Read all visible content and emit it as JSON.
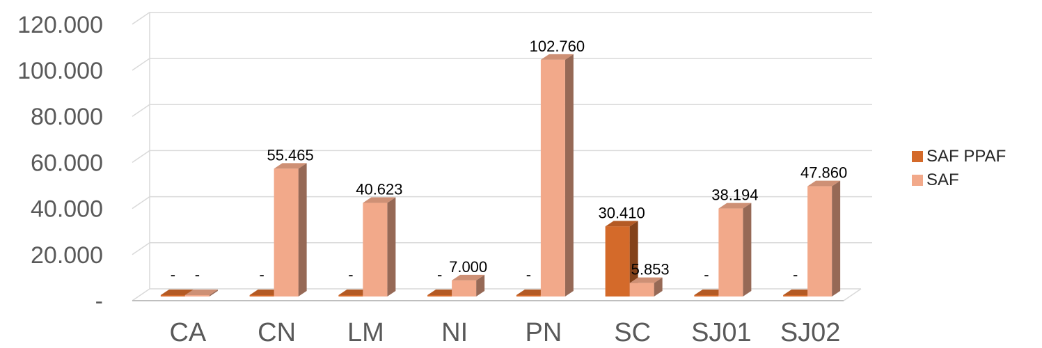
{
  "chart_data": {
    "type": "bar",
    "style": "3d-clustered-column",
    "categories": [
      "CA",
      "CN",
      "LM",
      "NI",
      "PN",
      "SC",
      "SJ01",
      "SJ02"
    ],
    "series": [
      {
        "name": "SAF PPAF",
        "color": "#d46a2a",
        "values": [
          0,
          0,
          0,
          0,
          0,
          30410,
          0,
          0
        ],
        "labels": [
          "-",
          "-",
          "-",
          "-",
          "-",
          "30.410",
          "-",
          "-"
        ]
      },
      {
        "name": "SAF",
        "color": "#f2a98a",
        "values": [
          0,
          55465,
          40623,
          7000,
          102760,
          5853,
          38194,
          47860
        ],
        "labels": [
          "-",
          "55.465",
          "40.623",
          "7.000",
          "102.760",
          "5.853",
          "38.194",
          "47.860"
        ]
      }
    ],
    "y_ticks": [
      {
        "value": 0,
        "label": "-"
      },
      {
        "value": 20000,
        "label": "20.000"
      },
      {
        "value": 40000,
        "label": "40.000"
      },
      {
        "value": 60000,
        "label": "60.000"
      },
      {
        "value": 80000,
        "label": "80.000"
      },
      {
        "value": 100000,
        "label": "100.000"
      },
      {
        "value": 120000,
        "label": "120.000"
      }
    ],
    "ylim": [
      0,
      120000
    ],
    "grid": true,
    "legend": "right"
  }
}
